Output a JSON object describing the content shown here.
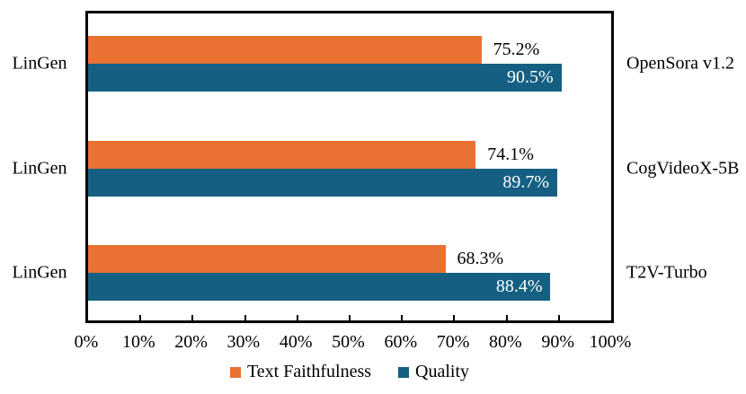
{
  "chart_data": {
    "type": "bar",
    "orientation": "horizontal",
    "title": "",
    "categories": [
      "OpenSora v1.2",
      "CogVideoX-5B",
      "T2V-Turbo"
    ],
    "left_category_labels": [
      "LinGen",
      "LinGen",
      "LinGen"
    ],
    "series": [
      {
        "name": "Text Faithfulness",
        "color": "#E97132",
        "values": [
          75.2,
          74.1,
          68.3
        ],
        "value_labels": [
          "75.2%",
          "74.1%",
          "68.3%"
        ],
        "label_placement": "outside-end",
        "label_color": "#000000"
      },
      {
        "name": "Quality",
        "color": "#156082",
        "values": [
          90.5,
          89.7,
          88.4
        ],
        "value_labels": [
          "90.5%",
          "89.7%",
          "88.4%"
        ],
        "label_placement": "inside-end",
        "label_color": "#FFFFFF"
      }
    ],
    "x_axis": {
      "min": 0,
      "max": 100,
      "tick_step": 10,
      "tick_labels": [
        "0%",
        "10%",
        "20%",
        "30%",
        "40%",
        "50%",
        "60%",
        "70%",
        "80%",
        "90%",
        "100%"
      ]
    },
    "grid": false,
    "legend": {
      "position": "bottom-center",
      "entries": [
        {
          "label": "Text Faithfulness",
          "color": "#E97132"
        },
        {
          "label": "Quality",
          "color": "#156082"
        }
      ]
    },
    "plot_border_color": "#000000"
  }
}
